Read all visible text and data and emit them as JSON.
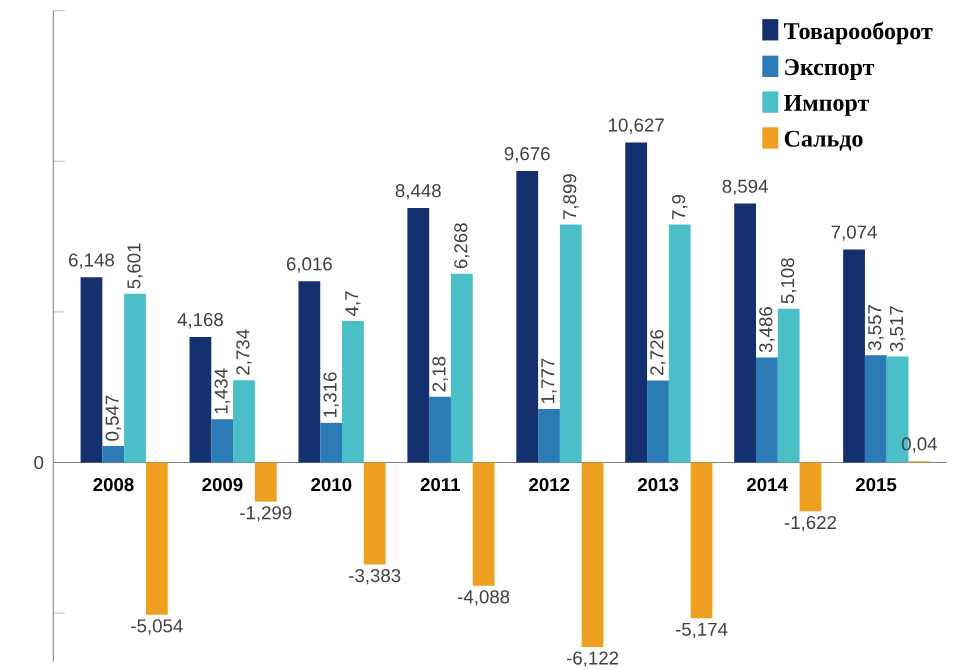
{
  "chart_data": {
    "type": "bar",
    "categories": [
      "2008",
      "2009",
      "2010",
      "2011",
      "2012",
      "2013",
      "2014",
      "2015"
    ],
    "series": [
      {
        "name": "Товарооборот",
        "color": "#14306e",
        "values": [
          6.148,
          4.168,
          6.016,
          8.448,
          9.676,
          10.627,
          8.594,
          7.074
        ],
        "value_labels": [
          "6,148",
          "4,168",
          "6,016",
          "8,448",
          "9,676",
          "10,627",
          "8,594",
          "7,074"
        ]
      },
      {
        "name": "Экспорт",
        "color": "#2c7bb6",
        "values": [
          0.547,
          1.434,
          1.316,
          2.18,
          1.777,
          2.726,
          3.486,
          3.557
        ],
        "value_labels": [
          "0,547",
          "1,434",
          "1,316",
          "2,18",
          "1,777",
          "2,726",
          "3,486",
          "3,557"
        ]
      },
      {
        "name": "Импорт",
        "color": "#4bbfc7",
        "values": [
          5.601,
          2.734,
          4.7,
          6.268,
          7.899,
          7.9,
          5.108,
          3.517
        ],
        "value_labels": [
          "5,601",
          "2,734",
          "4,7",
          "6,268",
          "7,899",
          "7,9",
          "5,108",
          "3,517"
        ]
      },
      {
        "name": "Сальдо",
        "color": "#f0a020",
        "values": [
          -5.054,
          -1.299,
          -3.383,
          -4.088,
          -6.122,
          -5.174,
          -1.622,
          0.04
        ],
        "value_labels": [
          "-5,054",
          "-1,299",
          "-3,383",
          "-4,088",
          "-6,122",
          "-5,174",
          "-1,622",
          "0,04"
        ]
      }
    ],
    "ylim": [
      -6.6,
      15
    ],
    "annotations": [
      "0"
    ],
    "tick_labels": "x",
    "legend": "top right",
    "grid": false
  }
}
